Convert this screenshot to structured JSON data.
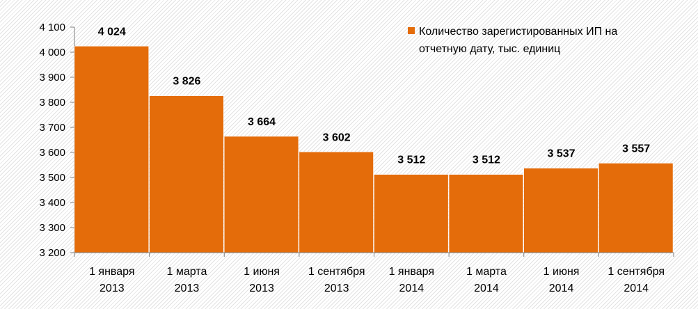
{
  "chart_data": {
    "type": "bar",
    "categories": [
      [
        "1 января",
        "2013"
      ],
      [
        "1 марта",
        "2013"
      ],
      [
        "1 июня",
        "2013"
      ],
      [
        "1 сентября",
        "2013"
      ],
      [
        "1 января",
        "2014"
      ],
      [
        "1 марта",
        "2014"
      ],
      [
        "1 июня",
        "2014"
      ],
      [
        "1 сентября",
        "2014"
      ]
    ],
    "series": [
      {
        "name": [
          "Количество зарегистированных ИП на",
          "отчетную дату, тыс. единиц"
        ],
        "color": "#e46c0a",
        "values": [
          4024,
          3826,
          3664,
          3602,
          3512,
          3512,
          3537,
          3557
        ],
        "value_labels": [
          "4 024",
          "3 826",
          "3 664",
          "3 602",
          "3 512",
          "3 512",
          "3 537",
          "3 557"
        ]
      }
    ],
    "ylim": [
      3200,
      4100
    ],
    "yticks": [
      3200,
      3300,
      3400,
      3500,
      3600,
      3700,
      3800,
      3900,
      4000,
      4100
    ],
    "ytick_labels": [
      "3 200",
      "3 300",
      "3 400",
      "3 500",
      "3 600",
      "3 700",
      "3 800",
      "3 900",
      "4 000",
      "4 100"
    ],
    "legend_position": "top-right",
    "grid": false
  }
}
